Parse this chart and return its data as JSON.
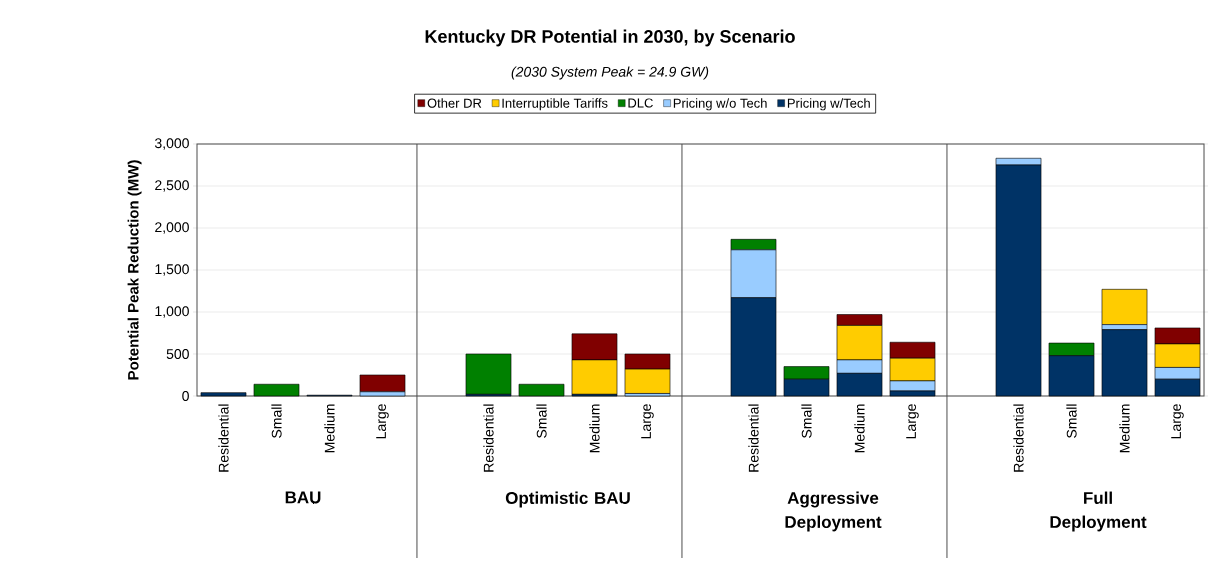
{
  "chart_data": {
    "type": "bar",
    "stacked": true,
    "title": "Kentucky DR Potential in 2030, by Scenario",
    "subtitle": "(2030 System Peak = 24.9 GW)",
    "ylabel": "Potential Peak Reduction (MW)",
    "categories": [
      "Residential",
      "Small",
      "Medium",
      "Large",
      null,
      "Residential",
      "Small",
      "Medium",
      "Large",
      null,
      "Residential",
      "Small",
      "Medium",
      "Large",
      null,
      "Residential",
      "Small",
      "Medium",
      "Large"
    ],
    "series": [
      {
        "name": "Pricing w/Tech",
        "color": "#003366",
        "values": [
          40,
          0,
          10,
          0,
          null,
          20,
          0,
          20,
          0,
          null,
          1170,
          200,
          270,
          60,
          null,
          2750,
          480,
          790,
          200
        ]
      },
      {
        "name": "Pricing w/o Tech",
        "color": "#99ccff",
        "values": [
          0,
          0,
          0,
          50,
          null,
          0,
          0,
          0,
          30,
          null,
          570,
          0,
          160,
          120,
          null,
          80,
          0,
          60,
          140
        ]
      },
      {
        "name": "DLC",
        "color": "#008000",
        "values": [
          0,
          140,
          0,
          0,
          null,
          480,
          140,
          0,
          0,
          null,
          125,
          150,
          0,
          0,
          null,
          0,
          150,
          0,
          0
        ]
      },
      {
        "name": "Interruptible Tariffs",
        "color": "#ffcc00",
        "values": [
          0,
          0,
          0,
          0,
          null,
          0,
          0,
          410,
          290,
          null,
          0,
          0,
          410,
          270,
          null,
          0,
          0,
          420,
          280
        ]
      },
      {
        "name": "Other DR",
        "color": "#800000",
        "values": [
          0,
          0,
          0,
          200,
          null,
          0,
          0,
          310,
          180,
          null,
          0,
          0,
          130,
          190,
          null,
          0,
          0,
          0,
          190
        ]
      }
    ],
    "ylim": [
      0,
      3000
    ],
    "yticks": [
      0,
      500,
      {
        "value": 1000,
        "label": "1,000"
      },
      {
        "value": 1500,
        "label": "1,500"
      },
      {
        "value": 2000,
        "label": "2,000"
      },
      {
        "value": 2500,
        "label": "2,500"
      },
      {
        "value": 3000,
        "label": "3,000"
      }
    ],
    "grid": "y",
    "legend": "top",
    "annotations": [
      "BAU",
      "Optimistic BAU",
      "Aggressive Deployment",
      "Full Deployment"
    ]
  }
}
